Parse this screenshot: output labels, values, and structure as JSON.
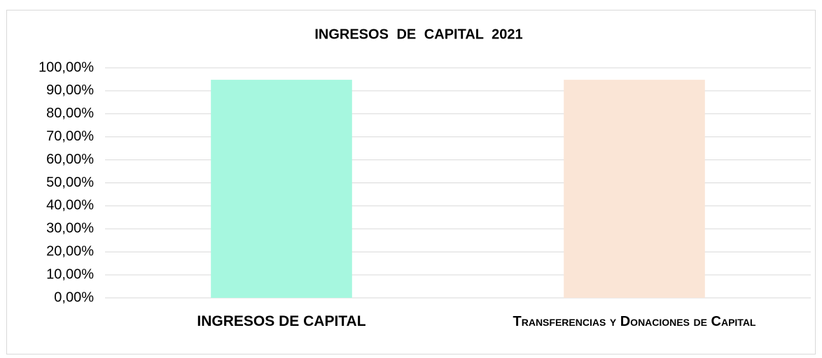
{
  "chart_data": {
    "type": "bar",
    "title": "INGRESOS DE CAPITAL 2021",
    "categories": [
      "INGRESOS DE CAPITAL",
      "Transferencias y Donaciones de Capital"
    ],
    "values": [
      94.8,
      94.8
    ],
    "colors": [
      "#a6f7df",
      "#fae5d6"
    ],
    "ylim": [
      0,
      100
    ],
    "yticks": [
      {
        "value": 0,
        "label": "0,00%"
      },
      {
        "value": 10,
        "label": "10,00%"
      },
      {
        "value": 20,
        "label": "20,00%"
      },
      {
        "value": 30,
        "label": "30,00%"
      },
      {
        "value": 40,
        "label": "40,00%"
      },
      {
        "value": 50,
        "label": "50,00%"
      },
      {
        "value": 60,
        "label": "60,00%"
      },
      {
        "value": 70,
        "label": "70,00%"
      },
      {
        "value": 80,
        "label": "80,00%"
      },
      {
        "value": 90,
        "label": "90,00%"
      },
      {
        "value": 100,
        "label": "100,00%"
      }
    ],
    "grid": true
  }
}
